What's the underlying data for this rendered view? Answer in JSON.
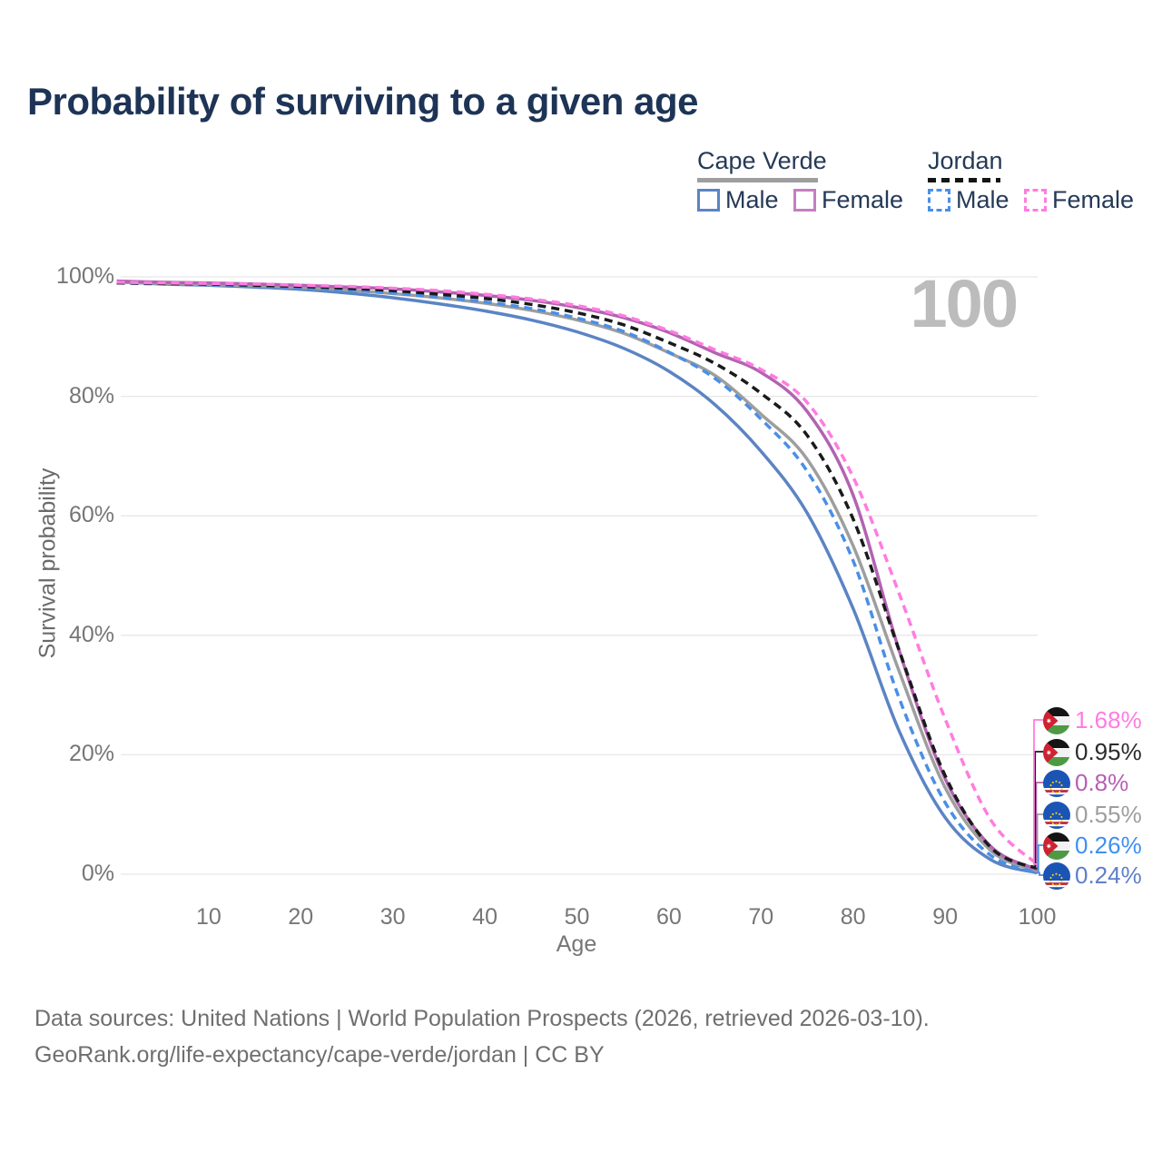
{
  "title": "Probability of surviving to a given age",
  "watermark": "100",
  "legend": {
    "groups": [
      {
        "title": "Cape Verde",
        "line_style": "solid",
        "items": [
          {
            "label": "Male",
            "color": "#5b84c4"
          },
          {
            "label": "Female",
            "color": "#c47fc0"
          }
        ]
      },
      {
        "title": "Jordan",
        "line_style": "dashed",
        "items": [
          {
            "label": "Male",
            "color": "#4a8fe7"
          },
          {
            "label": "Female",
            "color": "#ff7ce0"
          }
        ]
      }
    ]
  },
  "chart_data": {
    "type": "line",
    "title": "Probability of surviving to a given age",
    "xlabel": "Age",
    "ylabel": "Survival probability",
    "xlim": [
      0,
      100
    ],
    "ylim": [
      0,
      100
    ],
    "grid": "horizontal",
    "legend_position": "top-right",
    "x_tick_values": [
      10,
      20,
      30,
      40,
      50,
      60,
      70,
      80,
      90,
      100
    ],
    "y_tick_values": [
      0,
      20,
      40,
      60,
      80,
      100
    ],
    "y_tick_labels": [
      "0%",
      "20%",
      "40%",
      "60%",
      "80%",
      "100%"
    ],
    "age_indicator": "100",
    "x": [
      0,
      5,
      10,
      15,
      20,
      25,
      30,
      35,
      40,
      45,
      50,
      55,
      60,
      65,
      70,
      75,
      80,
      85,
      90,
      95,
      100
    ],
    "series": [
      {
        "name": "Cape Verde — Male",
        "country": "Cape Verde",
        "group": "Male",
        "color": "#5b84c4",
        "line_style": "solid",
        "flag": "cape-verde",
        "end_label": "0.24%",
        "end_label_color": "#5f7fc9",
        "end_row": 5,
        "values": [
          99.2,
          98.8,
          98.6,
          98.3,
          97.9,
          97.3,
          96.5,
          95.5,
          94.3,
          92.8,
          90.8,
          88.1,
          84.2,
          78.6,
          70.8,
          60.5,
          44.5,
          24.0,
          9.5,
          2.4,
          0.24
        ]
      },
      {
        "name": "Cape Verde",
        "country": "Cape Verde",
        "group": "Both",
        "color": "#9e9e9e",
        "line_style": "solid",
        "flag": "cape-verde",
        "end_label": "0.55%",
        "end_label_color": "#9e9ea0",
        "end_row": 3,
        "values": [
          99.1,
          98.9,
          98.7,
          98.5,
          98.2,
          97.8,
          97.2,
          96.5,
          95.6,
          94.4,
          92.8,
          90.6,
          87.3,
          83.5,
          77.0,
          69.5,
          55.0,
          34.0,
          14.5,
          3.9,
          0.55
        ]
      },
      {
        "name": "Cape Verde — Female",
        "country": "Cape Verde",
        "group": "Female",
        "color": "#b263b1",
        "line_style": "solid",
        "flag": "cape-verde",
        "end_label": "0.8%",
        "end_label_color": "#b75fb3",
        "end_row": 2,
        "values": [
          99.3,
          99.1,
          99.0,
          98.8,
          98.6,
          98.3,
          98.0,
          97.5,
          96.9,
          96.1,
          94.9,
          93.2,
          90.7,
          87.3,
          84.0,
          77.5,
          63.5,
          37.5,
          16.0,
          4.6,
          0.8
        ]
      },
      {
        "name": "Jordan — Male",
        "country": "Jordan",
        "group": "Male",
        "color": "#4a8fe7",
        "line_style": "dashed",
        "flag": "jordan",
        "end_label": "0.26%",
        "end_label_color": "#3f8ff2",
        "end_row": 4,
        "values": [
          99.0,
          98.8,
          98.7,
          98.5,
          98.2,
          97.8,
          97.3,
          96.6,
          95.8,
          94.7,
          93.1,
          90.9,
          87.4,
          83.0,
          76.2,
          67.5,
          52.5,
          29.5,
          12.0,
          3.1,
          0.26
        ]
      },
      {
        "name": "Jordan",
        "country": "Jordan",
        "group": "Both",
        "color": "#1a1a1a",
        "line_style": "dashed",
        "flag": "jordan",
        "end_label": "0.95%",
        "end_label_color": "#2b2b2b",
        "end_row": 1,
        "values": [
          99.0,
          98.9,
          98.8,
          98.6,
          98.4,
          98.1,
          97.7,
          97.1,
          96.4,
          95.4,
          94.0,
          92.0,
          89.0,
          85.5,
          80.5,
          73.5,
          59.5,
          37.5,
          16.5,
          4.4,
          0.95
        ]
      },
      {
        "name": "Jordan — Female",
        "country": "Jordan",
        "group": "Female",
        "color": "#ff7ce0",
        "line_style": "dashed",
        "flag": "jordan",
        "end_label": "1.68%",
        "end_label_color": "#ff7ce1",
        "end_row": 0,
        "values": [
          99.1,
          99.0,
          98.9,
          98.8,
          98.6,
          98.4,
          98.1,
          97.7,
          97.1,
          96.3,
          95.2,
          93.5,
          91.0,
          87.8,
          84.5,
          79.0,
          66.5,
          47.0,
          26.0,
          9.0,
          1.68
        ]
      }
    ]
  },
  "footer": {
    "line1": "Data sources: United Nations | World Population Prospects (2026, retrieved 2026-03-10).",
    "line2": "GeoRank.org/life-expectancy/cape-verde/jordan | CC BY"
  }
}
